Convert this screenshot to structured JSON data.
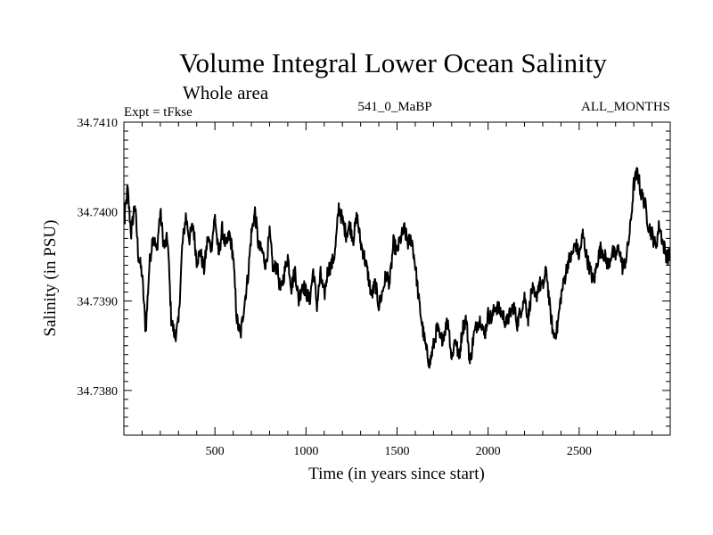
{
  "chart_data": {
    "type": "line",
    "title": "Volume Integral Lower Ocean Salinity",
    "subtitle": "Whole area",
    "experiment_label": "Expt = tFkse",
    "run_label": "541_0_MaBP",
    "months_label": "ALL_MONTHS",
    "xlabel": "Time (in years since start)",
    "ylabel": "Salinity (in PSU)",
    "xlim": [
      0,
      3000
    ],
    "ylim": [
      34.7375,
      34.741
    ],
    "x_ticks": [
      500,
      1000,
      1500,
      2000,
      2500
    ],
    "y_ticks": [
      34.738,
      34.739,
      34.74,
      34.741
    ],
    "y_tick_labels": [
      "34.7380",
      "34.7390",
      "34.7400",
      "34.7410"
    ],
    "series": [
      {
        "name": "salinity",
        "x": [
          0,
          20,
          40,
          60,
          80,
          100,
          120,
          140,
          160,
          180,
          200,
          220,
          240,
          260,
          280,
          300,
          320,
          340,
          360,
          380,
          400,
          420,
          440,
          460,
          480,
          500,
          520,
          540,
          560,
          580,
          600,
          620,
          640,
          660,
          680,
          700,
          720,
          740,
          760,
          780,
          800,
          820,
          840,
          860,
          880,
          900,
          920,
          940,
          960,
          980,
          1000,
          1020,
          1040,
          1060,
          1080,
          1100,
          1120,
          1140,
          1160,
          1180,
          1200,
          1220,
          1240,
          1260,
          1280,
          1300,
          1320,
          1340,
          1360,
          1380,
          1400,
          1420,
          1440,
          1460,
          1480,
          1500,
          1520,
          1540,
          1560,
          1580,
          1600,
          1620,
          1640,
          1660,
          1680,
          1700,
          1720,
          1740,
          1760,
          1780,
          1800,
          1820,
          1840,
          1860,
          1880,
          1900,
          1920,
          1940,
          1960,
          1980,
          2000,
          2020,
          2040,
          2060,
          2080,
          2100,
          2120,
          2140,
          2160,
          2180,
          2200,
          2220,
          2240,
          2260,
          2280,
          2300,
          2320,
          2340,
          2360,
          2380,
          2400,
          2420,
          2440,
          2460,
          2480,
          2500,
          2520,
          2540,
          2560,
          2580,
          2600,
          2620,
          2640,
          2660,
          2680,
          2700,
          2720,
          2740,
          2760,
          2780,
          2800,
          2820,
          2840,
          2860,
          2880,
          2900,
          2920,
          2940,
          2960,
          2980,
          3000
        ],
        "values": [
          34.73985,
          34.74025,
          34.73975,
          34.7401,
          34.7395,
          34.7393,
          34.73865,
          34.7394,
          34.73975,
          34.73955,
          34.74,
          34.7396,
          34.7397,
          34.7388,
          34.7386,
          34.73875,
          34.7396,
          34.73995,
          34.7397,
          34.73985,
          34.73945,
          34.73955,
          34.73935,
          34.7397,
          34.7396,
          34.73995,
          34.7395,
          34.7398,
          34.7396,
          34.73975,
          34.7395,
          34.7388,
          34.7386,
          34.73895,
          34.73925,
          34.73975,
          34.74,
          34.7396,
          34.73955,
          34.7394,
          34.73975,
          34.73935,
          34.7394,
          34.7391,
          34.7393,
          34.7395,
          34.73915,
          34.73935,
          34.739,
          34.7392,
          34.7391,
          34.739,
          34.73935,
          34.73895,
          34.7393,
          34.73905,
          34.73935,
          34.7394,
          34.73955,
          34.74005,
          34.7399,
          34.73975,
          34.73985,
          34.7397,
          34.73995,
          34.73965,
          34.7395,
          34.7393,
          34.73905,
          34.7392,
          34.73895,
          34.7391,
          34.7393,
          34.7392,
          34.73965,
          34.73955,
          34.7397,
          34.7398,
          34.73965,
          34.7397,
          34.7394,
          34.739,
          34.7387,
          34.73845,
          34.7383,
          34.7385,
          34.7387,
          34.73855,
          34.73865,
          34.7388,
          34.73835,
          34.7386,
          34.73835,
          34.7387,
          34.7388,
          34.7383,
          34.7386,
          34.73875,
          34.7388,
          34.7386,
          34.73885,
          34.7388,
          34.73895,
          34.7389,
          34.73885,
          34.73875,
          34.73885,
          34.73895,
          34.73875,
          34.7389,
          34.73905,
          34.7388,
          34.73915,
          34.739,
          34.7392,
          34.73915,
          34.73935,
          34.7389,
          34.7386,
          34.7387,
          34.73905,
          34.73925,
          34.73945,
          34.7395,
          34.73965,
          34.7395,
          34.73975,
          34.7395,
          34.73935,
          34.7392,
          34.73945,
          34.7396,
          34.7395,
          34.7394,
          34.73955,
          34.7395,
          34.7396,
          34.73935,
          34.7395,
          34.7398,
          34.7403,
          34.74045,
          34.7402,
          34.7401,
          34.73985,
          34.73975,
          34.7396,
          34.73985,
          34.73965,
          34.7395,
          34.7395
        ]
      }
    ]
  }
}
